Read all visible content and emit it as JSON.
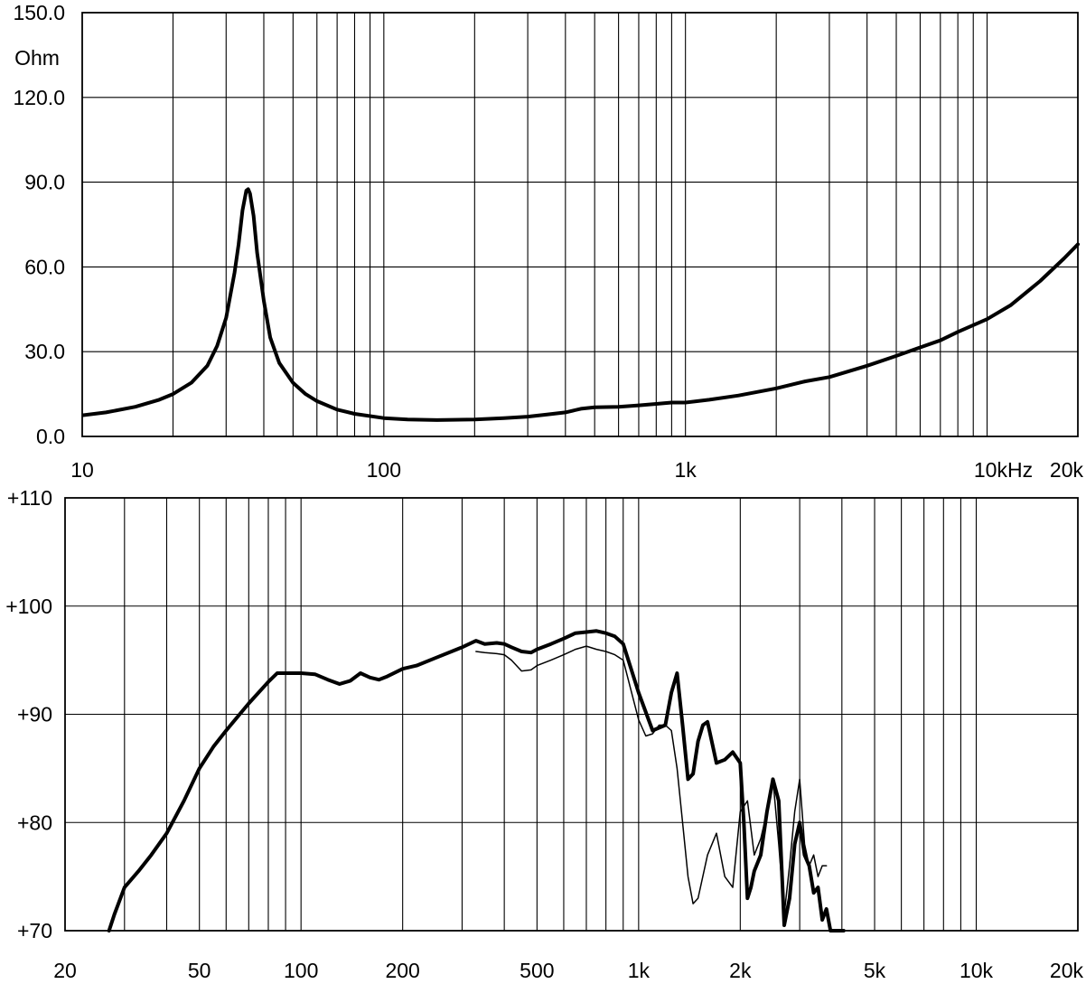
{
  "chart_data": [
    {
      "type": "line",
      "title": "",
      "ylabel": "Ohm",
      "xlabel": "",
      "xscale": "log",
      "xlim": [
        10,
        20000
      ],
      "ylim": [
        0,
        150
      ],
      "grid": true,
      "yticks": [
        {
          "v": 0,
          "label": "0.0"
        },
        {
          "v": 30,
          "label": "30.0"
        },
        {
          "v": 60,
          "label": "60.0"
        },
        {
          "v": 90,
          "label": "90.0"
        },
        {
          "v": 120,
          "label": "120.0"
        },
        {
          "v": 150,
          "label": "150.0"
        }
      ],
      "xticks": [
        {
          "v": 10,
          "label": "10"
        },
        {
          "v": 100,
          "label": "100"
        },
        {
          "v": 1000,
          "label": "1k"
        },
        {
          "v": 10000,
          "label": "10kHz"
        },
        {
          "v": 20000,
          "label": "20k"
        }
      ],
      "series": [
        {
          "style": "thick",
          "x": [
            10,
            12,
            15,
            18,
            20,
            23,
            26,
            28,
            30,
            32,
            33,
            34,
            35,
            35.5,
            36,
            37,
            38,
            40,
            42,
            45,
            50,
            55,
            60,
            70,
            80,
            100,
            120,
            150,
            200,
            250,
            300,
            350,
            400,
            450,
            500,
            600,
            700,
            800,
            900,
            1000,
            1100,
            1200,
            1500,
            2000,
            2500,
            3000,
            4000,
            5000,
            6000,
            7000,
            8000,
            10000,
            12000,
            15000,
            18000,
            20000
          ],
          "y": [
            7.5,
            8.5,
            10.5,
            13,
            15,
            19,
            25,
            32,
            42,
            58,
            68,
            80,
            87,
            87.5,
            86,
            78,
            65,
            48,
            35,
            26,
            19,
            15,
            12.5,
            9.5,
            8,
            6.5,
            6,
            5.8,
            6,
            6.5,
            7,
            7.8,
            8.5,
            9.8,
            10.3,
            10.5,
            11,
            11.5,
            12,
            12,
            12.5,
            13,
            14.5,
            17,
            19.5,
            21,
            25,
            28.5,
            31.5,
            34,
            37,
            41.5,
            46.5,
            55,
            63,
            68
          ]
        }
      ]
    },
    {
      "type": "line",
      "title": "",
      "ylabel": "",
      "xlabel": "",
      "xscale": "log",
      "xlim": [
        20,
        20000
      ],
      "ylim": [
        70,
        110
      ],
      "grid": true,
      "yticks": [
        {
          "v": 70,
          "label": "+70"
        },
        {
          "v": 80,
          "label": "+80"
        },
        {
          "v": 90,
          "label": "+90"
        },
        {
          "v": 100,
          "label": "+100"
        },
        {
          "v": 110,
          "label": "+110"
        }
      ],
      "xticks": [
        {
          "v": 20,
          "label": "20"
        },
        {
          "v": 50,
          "label": "50"
        },
        {
          "v": 100,
          "label": "100"
        },
        {
          "v": 200,
          "label": "200"
        },
        {
          "v": 500,
          "label": "500"
        },
        {
          "v": 1000,
          "label": "1k"
        },
        {
          "v": 2000,
          "label": "2k"
        },
        {
          "v": 5000,
          "label": "5k"
        },
        {
          "v": 10000,
          "label": "10k"
        },
        {
          "v": 20000,
          "label": "20k"
        }
      ],
      "series": [
        {
          "style": "thick",
          "x": [
            27,
            28,
            30,
            33,
            36,
            40,
            45,
            50,
            55,
            60,
            70,
            80,
            85,
            90,
            100,
            110,
            120,
            130,
            140,
            150,
            160,
            170,
            180,
            200,
            220,
            250,
            300,
            330,
            350,
            380,
            400,
            420,
            450,
            480,
            500,
            550,
            600,
            650,
            700,
            750,
            800,
            850,
            900,
            1000,
            1100,
            1200,
            1250,
            1300,
            1350,
            1400,
            1450,
            1500,
            1550,
            1600,
            1700,
            1800,
            1900,
            2000,
            2050,
            2100,
            2150,
            2200,
            2300,
            2400,
            2500,
            2600,
            2700,
            2800,
            2900,
            3000,
            3100,
            3200,
            3300,
            3400,
            3500,
            3600,
            3700,
            3800,
            3900,
            4000,
            4050
          ],
          "y": [
            70,
            71.5,
            74,
            75.5,
            77,
            79,
            82,
            85,
            87,
            88.5,
            91,
            93,
            93.8,
            93.8,
            93.8,
            93.7,
            93.2,
            92.8,
            93.1,
            93.8,
            93.4,
            93.2,
            93.5,
            94.2,
            94.5,
            95.2,
            96.2,
            96.8,
            96.5,
            96.6,
            96.5,
            96.2,
            95.8,
            95.7,
            96.0,
            96.5,
            97.0,
            97.5,
            97.6,
            97.7,
            97.5,
            97.2,
            96.5,
            92.0,
            88.5,
            89.0,
            92.0,
            93.8,
            89.0,
            84.0,
            84.5,
            87.5,
            89.0,
            89.3,
            85.5,
            85.8,
            86.5,
            85.5,
            80.0,
            73.0,
            74.0,
            75.5,
            77.0,
            81.0,
            84.0,
            82.0,
            70.5,
            73.0,
            78.0,
            80.0,
            77.0,
            76.0,
            73.5,
            74.0,
            71.0,
            72.0,
            70.0,
            70.0,
            70.0,
            70.0,
            70.0
          ]
        },
        {
          "style": "thin",
          "x": [
            330,
            350,
            380,
            400,
            420,
            450,
            480,
            500,
            550,
            600,
            650,
            700,
            750,
            800,
            850,
            900,
            1000,
            1050,
            1100,
            1150,
            1200,
            1250,
            1300,
            1350,
            1400,
            1450,
            1500,
            1600,
            1700,
            1800,
            1900,
            2000,
            2100,
            2200,
            2300,
            2400,
            2500,
            2600,
            2700,
            2800,
            2900,
            3000,
            3100,
            3200,
            3300,
            3400,
            3500,
            3600
          ],
          "y": [
            95.8,
            95.7,
            95.6,
            95.5,
            95.0,
            94.0,
            94.1,
            94.5,
            95.0,
            95.5,
            96.0,
            96.3,
            96.0,
            95.8,
            95.5,
            95.0,
            89.5,
            88.0,
            88.2,
            89.0,
            89.0,
            88.5,
            85.0,
            80.0,
            75.0,
            72.5,
            73.0,
            77.0,
            79.0,
            75.0,
            74.0,
            81.0,
            82.0,
            77.0,
            78.5,
            81.0,
            84.0,
            78.0,
            71.5,
            76.0,
            81.0,
            84.0,
            78.0,
            76.0,
            77.0,
            75.0,
            76.0,
            76.0
          ]
        }
      ]
    }
  ]
}
